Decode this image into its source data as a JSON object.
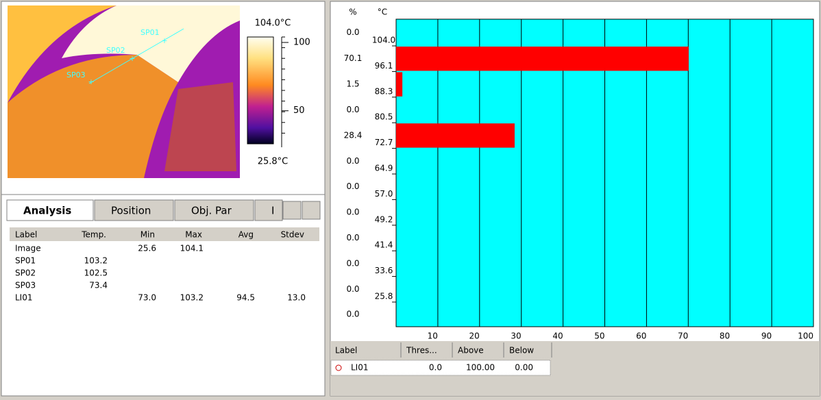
{
  "image": {
    "spot_labels": [
      "SP01",
      "SP02",
      "SP03"
    ],
    "scale_max": {
      "value": 104.0,
      "label": "104.0°C"
    },
    "scale_min": {
      "value": 25.8,
      "label": "25.8°C"
    },
    "scale_ticks": [
      100,
      50
    ]
  },
  "tabs": [
    "Analysis",
    "Position",
    "Obj. Par",
    "I"
  ],
  "analysis_table": {
    "columns": [
      "Label",
      "Temp.",
      "Min",
      "Max",
      "Avg",
      "Stdev"
    ],
    "rows": [
      {
        "label": "Image",
        "min": "25.6",
        "max": "104.1"
      },
      {
        "label": "SP01",
        "temp": "103.2"
      },
      {
        "label": "SP02",
        "temp": "102.5"
      },
      {
        "label": "SP03",
        "temp": "73.4"
      },
      {
        "label": "LI01",
        "min": "73.0",
        "max": "103.2",
        "avg": "94.5",
        "stdev": "13.0"
      }
    ]
  },
  "chart_data": {
    "type": "hbar",
    "x_unit_label": "%",
    "y_unit_label": "°C",
    "edges": [
      {
        "value": 104.0,
        "label": "104.0"
      },
      {
        "value": 96.1,
        "label": "96.1"
      },
      {
        "value": 88.3,
        "label": "88.3"
      },
      {
        "value": 80.5,
        "label": "80.5"
      },
      {
        "value": 72.7,
        "label": "72.7"
      },
      {
        "value": 64.9,
        "label": "64.9"
      },
      {
        "value": 57.0,
        "label": "57.0"
      },
      {
        "value": 49.2,
        "label": "49.2"
      },
      {
        "value": 41.4,
        "label": "41.4"
      },
      {
        "value": 33.6,
        "label": "33.6"
      },
      {
        "value": 25.8,
        "label": "25.8"
      }
    ],
    "values": [
      0,
      70.1,
      1.5,
      0,
      28.4,
      0,
      0,
      0,
      0,
      0,
      0,
      0
    ],
    "value_labels": [
      "0.0",
      "70.1",
      "1.5",
      "0.0",
      "28.4",
      "0.0",
      "0.0",
      "0.0",
      "0.0",
      "0.0",
      "0.0",
      "0.0"
    ],
    "color": "#ff0000",
    "background": "#00ffff",
    "grid": true,
    "xlim": [
      0,
      100
    ],
    "xticks": [
      10,
      20,
      30,
      40,
      50,
      60,
      70,
      80,
      90,
      100
    ]
  },
  "result_table": {
    "columns": [
      "Label",
      "Thres...",
      "Above",
      "Below"
    ],
    "rows": [
      [
        "LI01",
        "0.0",
        "100.00",
        "0.00"
      ]
    ]
  }
}
